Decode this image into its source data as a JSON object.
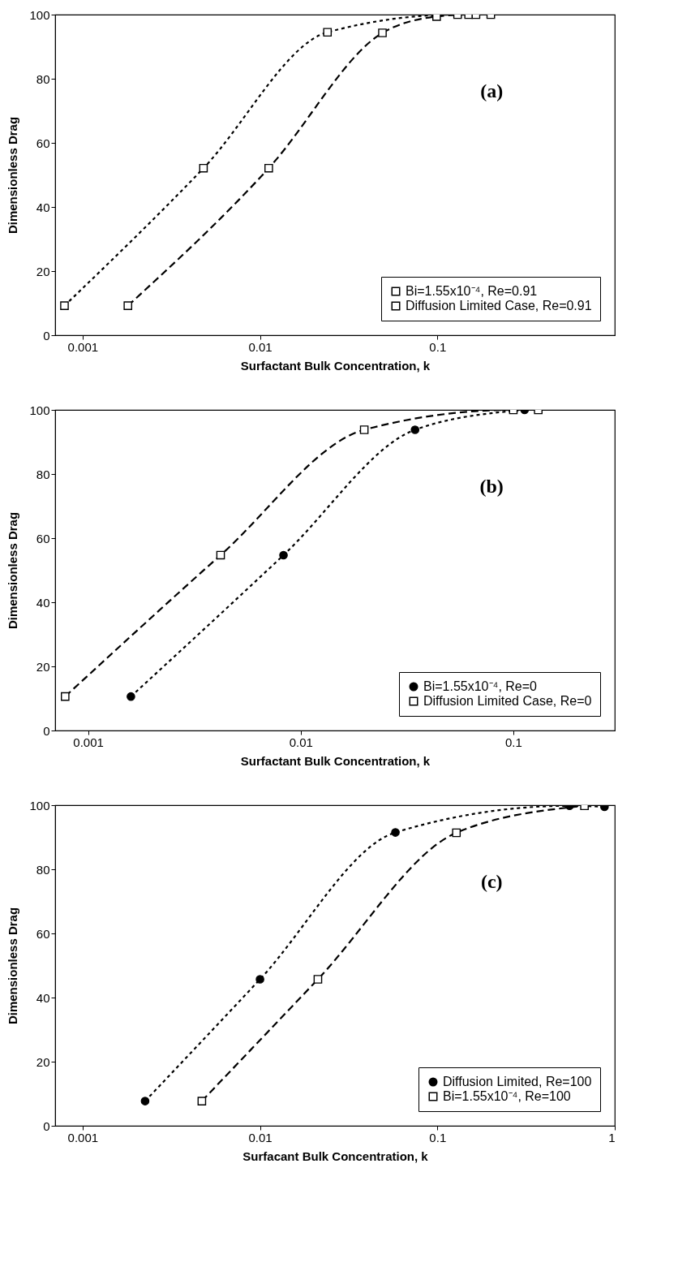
{
  "chart_data": [
    {
      "type": "line",
      "xlabel": "Surfactant Bulk Concentration, k",
      "ylabel": "Dimensionless Drag",
      "annotations": [
        "(a)"
      ],
      "log": "x",
      "xlim": [
        0.0007,
        1
      ],
      "xticks": [
        0.001,
        0.01,
        0.1
      ],
      "ylim": [
        0,
        100
      ],
      "yticks": [
        0,
        20,
        40,
        60,
        80,
        100
      ],
      "legend": "bottom right",
      "series": [
        {
          "name": "Bi=1.55x10⁻⁴, Re=0.91",
          "color": "#000000",
          "marker": "square",
          "line_style": "dashed",
          "x": [
            0.0018,
            0.0112,
            0.049,
            0.099,
            0.15,
            0.2
          ],
          "values": [
            9.2,
            52.1,
            94.3,
            99.4,
            100,
            100
          ]
        },
        {
          "name": "Diffusion Limited Case, Re=0.91",
          "color": "#000000",
          "marker": "square",
          "line_style": "dotted",
          "x": [
            0.00079,
            0.0048,
            0.024,
            0.13,
            0.165
          ],
          "values": [
            9.2,
            52.1,
            94.5,
            100,
            100
          ]
        }
      ]
    },
    {
      "type": "line",
      "xlabel": "Surfactant Bulk Concentration, k",
      "ylabel": "Dimensionless Drag",
      "annotations": [
        "(b)"
      ],
      "log": "x",
      "xlim": [
        0.0007,
        0.3
      ],
      "xticks": [
        0.001,
        0.01,
        0.1
      ],
      "ylim": [
        0,
        100
      ],
      "yticks": [
        0,
        20,
        40,
        60,
        80,
        100
      ],
      "legend": "bottom right",
      "series": [
        {
          "name": "Bi=1.55x10⁻⁴, Re=0",
          "color": "#000000",
          "marker": "circle",
          "line_style": "dotted",
          "x": [
            0.00159,
            0.0083,
            0.0345,
            0.113
          ],
          "values": [
            10.6,
            54.7,
            93.8,
            100
          ]
        },
        {
          "name": "Diffusion Limited Case, Re=0",
          "color": "#000000",
          "marker": "square",
          "line_style": "dashed",
          "x": [
            0.00078,
            0.0042,
            0.0199,
            0.1,
            0.131
          ],
          "values": [
            10.6,
            54.7,
            93.8,
            100,
            100
          ]
        }
      ]
    },
    {
      "type": "line",
      "xlabel": "Surfacant Bulk Concentration, k",
      "ylabel": "Dimensionless Drag",
      "annotations": [
        "(c)"
      ],
      "log": "x",
      "xlim": [
        0.0007,
        1
      ],
      "xticks": [
        0.001,
        0.01,
        0.1,
        1
      ],
      "ylim": [
        0,
        100
      ],
      "yticks": [
        0,
        20,
        40,
        60,
        80,
        100
      ],
      "legend": "bottom right",
      "series": [
        {
          "name": "Diffusion Limited, Re=100",
          "color": "#000000",
          "marker": "circle",
          "line_style": "dotted",
          "x": [
            0.00225,
            0.01,
            0.058,
            0.556,
            0.875
          ],
          "values": [
            7.7,
            45.7,
            91.5,
            99.8,
            99.5
          ]
        },
        {
          "name": "Bi=1.55x10⁻⁴, Re=100",
          "color": "#000000",
          "marker": "square",
          "line_style": "dashed",
          "x": [
            0.0047,
            0.0212,
            0.128,
            0.675
          ],
          "values": [
            7.7,
            45.7,
            91.4,
            99.8
          ]
        }
      ]
    }
  ]
}
